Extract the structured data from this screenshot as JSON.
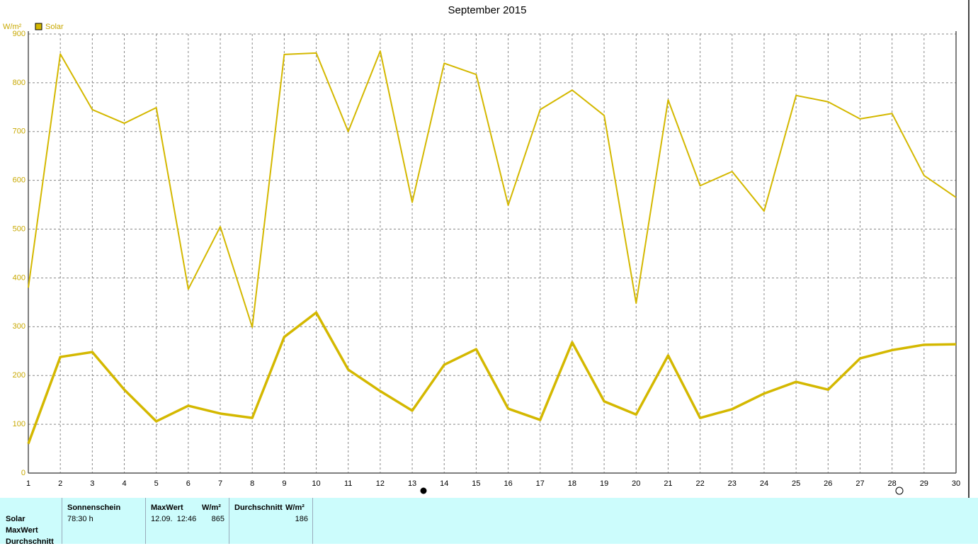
{
  "chart_data": {
    "type": "line",
    "title": "September 2015",
    "y_label": "W/m²",
    "x": [
      1,
      2,
      3,
      4,
      5,
      6,
      7,
      8,
      9,
      10,
      11,
      12,
      13,
      14,
      15,
      16,
      17,
      18,
      19,
      20,
      21,
      22,
      23,
      24,
      25,
      26,
      27,
      28,
      29,
      30
    ],
    "xlim": [
      1,
      30
    ],
    "ylim": [
      0,
      900
    ],
    "yticks": [
      0,
      100,
      200,
      300,
      400,
      500,
      600,
      700,
      800,
      900
    ],
    "grid": true,
    "legend": "top-left",
    "series": [
      {
        "name": "Solar",
        "color": "#d4b800",
        "width": 2,
        "values": [
          380,
          859,
          745,
          717,
          749,
          377,
          505,
          299,
          858,
          861,
          700,
          865,
          555,
          840,
          817,
          549,
          745,
          785,
          733,
          348,
          765,
          589,
          618,
          537,
          774,
          761,
          726,
          737,
          610,
          565
        ]
      },
      {
        "color": "#d4b800",
        "width": 3.5,
        "values": [
          60,
          238,
          248,
          171,
          106,
          138,
          122,
          113,
          279,
          329,
          212,
          168,
          128,
          222,
          254,
          132,
          109,
          268,
          147,
          120,
          241,
          113,
          131,
          163,
          187,
          171,
          235,
          252,
          263,
          264
        ]
      }
    ]
  },
  "table": {
    "row_labels": [
      "Solar",
      "MaxWert",
      "Durchschnitt"
    ],
    "headers": [
      "Sonnenschein",
      "MaxWert",
      "W/m²",
      "Durchschnitt",
      "W/m²"
    ],
    "cells": [
      "78:30 h",
      "12.09.  12:46",
      "865",
      "186"
    ]
  }
}
